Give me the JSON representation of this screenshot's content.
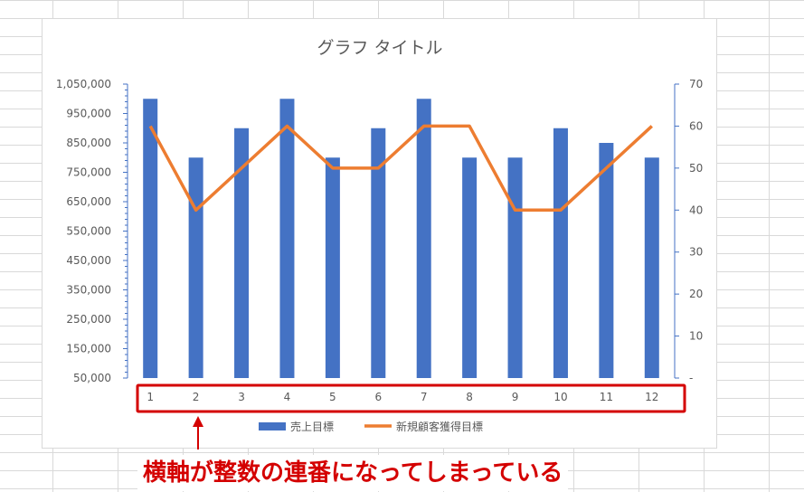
{
  "chart_data": {
    "type": "bar",
    "title": "グラフ タイトル",
    "categories": [
      "1",
      "2",
      "3",
      "4",
      "5",
      "6",
      "7",
      "8",
      "9",
      "10",
      "11",
      "12"
    ],
    "series": [
      {
        "name": "売上目標",
        "type": "bar",
        "axis": "left",
        "color": "#4472C4",
        "values": [
          1000000,
          800000,
          900000,
          1000000,
          800000,
          900000,
          1000000,
          800000,
          800000,
          900000,
          850000,
          800000
        ]
      },
      {
        "name": "新規顧客獲得目標",
        "type": "line",
        "axis": "right",
        "color": "#ED7D31",
        "values": [
          60,
          40,
          50,
          60,
          50,
          50,
          60,
          60,
          40,
          40,
          50,
          60
        ]
      }
    ],
    "y_left": {
      "ylim": [
        50000,
        1050000
      ],
      "tick_labels": [
        "1,050,000",
        "950,000",
        "850,000",
        "750,000",
        "650,000",
        "550,000",
        "450,000",
        "350,000",
        "250,000",
        "150,000",
        "50,000"
      ]
    },
    "y_right": {
      "ylim": [
        0,
        70
      ],
      "tick_labels": [
        "70",
        "60",
        "50",
        "40",
        "30",
        "20",
        "10",
        "-"
      ]
    },
    "legend_position": "bottom",
    "grid": false
  },
  "annotation": {
    "caption": "横軸が整数の連番になってしまっている",
    "highlight_color": "#d40000"
  }
}
